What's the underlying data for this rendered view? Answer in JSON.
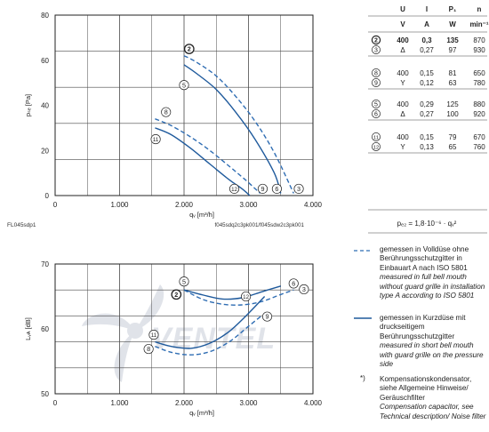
{
  "chart_data": [
    {
      "type": "line",
      "xlabel": "qᵥ [m³/h]",
      "ylabel": "pₛₑ [Pa]",
      "xlim": [
        0,
        4000
      ],
      "ylim": [
        0,
        80
      ],
      "x_ticks": [
        "0",
        "1.000",
        "2.000",
        "3.000",
        "4.000"
      ],
      "y_ticks": [
        "0",
        "20",
        "40",
        "60",
        "80"
      ],
      "grid": true,
      "footer_left": "FL045sdp1",
      "footer_right": "f045sdq2c3pk001/f045sdw2c3pk001",
      "series": [
        {
          "name": "2",
          "style": "dashed",
          "x": [
            2000,
            2200,
            2500,
            2800,
            3100,
            3400,
            3700
          ],
          "y": [
            62,
            59,
            53,
            44,
            33,
            19,
            1
          ]
        },
        {
          "name": "3",
          "style": "dashed",
          "x": [
            3700,
            3760
          ]
        },
        {
          "name": "5",
          "style": "solid",
          "x": [
            2000,
            2200,
            2500,
            2800,
            3100,
            3400,
            3500
          ],
          "y": [
            58,
            54,
            47,
            37,
            25,
            10,
            1
          ]
        },
        {
          "name": "6",
          "style": "solid",
          "x": [
            3500,
            3480
          ]
        },
        {
          "name": "8",
          "style": "dashed",
          "x": [
            1550,
            1800,
            2100,
            2400,
            2700,
            2950,
            3180
          ],
          "y": [
            34,
            31,
            26,
            20,
            13,
            7,
            1
          ]
        },
        {
          "name": "9",
          "style": "dashed",
          "x": [
            3180,
            3160
          ]
        },
        {
          "name": "11",
          "style": "solid",
          "x": [
            1550,
            1800,
            2100,
            2400,
            2700,
            2900,
            3020
          ],
          "y": [
            30,
            27,
            21,
            14,
            7,
            3,
            0
          ]
        },
        {
          "name": "12",
          "style": "solid",
          "x": [
            3020,
            3000
          ]
        }
      ],
      "curve_labels": [
        {
          "name": "2",
          "x": 2080,
          "y": 65,
          "bold": true
        },
        {
          "name": "5",
          "x": 2000,
          "y": 49
        },
        {
          "name": "8",
          "x": 1720,
          "y": 37
        },
        {
          "name": "11",
          "x": 1560,
          "y": 25
        },
        {
          "name": "12",
          "x": 2780,
          "y": 3
        },
        {
          "name": "9",
          "x": 3220,
          "y": 3
        },
        {
          "name": "6",
          "x": 3440,
          "y": 3
        },
        {
          "name": "3",
          "x": 3780,
          "y": 3
        }
      ]
    },
    {
      "type": "line",
      "xlabel": "qᵥ [m³/h]",
      "ylabel": "Lᵥᴀ [dB]",
      "xlim": [
        0,
        4000
      ],
      "ylim": [
        50,
        70
      ],
      "x_ticks": [
        "0",
        "1.000",
        "2.000",
        "3.000",
        "4.000"
      ],
      "y_ticks": [
        "50",
        "60",
        "70"
      ],
      "grid": true,
      "series": [
        {
          "name": "2",
          "style": "dashed",
          "x": [
            2000,
            2300,
            2600,
            2900,
            3200,
            3500,
            3700
          ],
          "y": [
            66,
            64.5,
            63.8,
            63.7,
            64.2,
            65.3,
            66
          ]
        },
        {
          "name": "5",
          "style": "solid",
          "x": [
            2000,
            2300,
            2600,
            2900,
            3200,
            3500
          ],
          "y": [
            66,
            65.2,
            64.6,
            64.8,
            65.7,
            66.6
          ]
        },
        {
          "name": "8",
          "style": "dashed",
          "x": [
            1550,
            1800,
            2100,
            2400,
            2700,
            3000,
            3200
          ],
          "y": [
            57.3,
            56.4,
            56.0,
            56.5,
            58.0,
            60.4,
            62
          ]
        },
        {
          "name": "11",
          "style": "solid",
          "x": [
            1550,
            1800,
            2100,
            2400,
            2700,
            3000,
            3250
          ],
          "y": [
            58,
            57.3,
            57.0,
            57.8,
            59.6,
            62.4,
            65
          ]
        }
      ],
      "curve_labels": [
        {
          "name": "5",
          "x": 2000,
          "y": 67.3
        },
        {
          "name": "2",
          "x": 1880,
          "y": 65.3,
          "bold": true
        },
        {
          "name": "12",
          "x": 2960,
          "y": 65.0
        },
        {
          "name": "6",
          "x": 3700,
          "y": 67.0
        },
        {
          "name": "3",
          "x": 3860,
          "y": 66.1
        },
        {
          "name": "9",
          "x": 3290,
          "y": 61.9
        },
        {
          "name": "11",
          "x": 1530,
          "y": 59.1
        },
        {
          "name": "8",
          "x": 1450,
          "y": 56.9
        }
      ]
    }
  ],
  "table": {
    "headers": [
      "U",
      "I",
      "P₁",
      "n"
    ],
    "units": [
      "V",
      "A",
      "W",
      "min⁻¹"
    ],
    "groups": [
      {
        "rows": [
          {
            "id": "2",
            "conn": "",
            "U": "400",
            "I": "0,3",
            "P": "135",
            "n": "870",
            "bold": true
          },
          {
            "id": "3",
            "conn": "Δ",
            "U": "",
            "I": "0,27",
            "P": "97",
            "n": "930",
            "bold": false
          }
        ]
      },
      {
        "rows": [
          {
            "id": "8",
            "conn": "",
            "U": "400",
            "I": "0,15",
            "P": "81",
            "n": "650",
            "bold": false
          },
          {
            "id": "9",
            "conn": "Y",
            "U": "",
            "I": "0,12",
            "P": "63",
            "n": "780",
            "bold": false
          }
        ]
      },
      {
        "rows": [
          {
            "id": "5",
            "conn": "",
            "U": "400",
            "I": "0,29",
            "P": "125",
            "n": "880",
            "bold": false
          },
          {
            "id": "6",
            "conn": "Δ",
            "U": "",
            "I": "0,27",
            "P": "100",
            "n": "920",
            "bold": false
          }
        ]
      },
      {
        "rows": [
          {
            "id": "11",
            "conn": "",
            "U": "400",
            "I": "0,15",
            "P": "79",
            "n": "670",
            "bold": false
          },
          {
            "id": "12",
            "conn": "Y",
            "U": "",
            "I": "0,13",
            "P": "65",
            "n": "760",
            "bold": false
          }
        ]
      }
    ],
    "formula": "pₑ₂ = 1,8·10⁻⁶ · qᵥ²"
  },
  "legend": {
    "dashed": {
      "de": "gemessen in Volldüse ohne Berührungsschutzgitter in Einbauart A nach ISO 5801",
      "en": "measured in full bell mouth without guard grille in installation type A according to ISO 5801"
    },
    "solid": {
      "de": "gemessen in Kurzdüse mit druckseitigem Berührungsschutzgitter",
      "en": "measured in short bell mouth with guard grille on the pressure side"
    },
    "note": {
      "marker": "*)",
      "de": "Kompensationskondensator, siehe Allgemeine Hinweise/ Geräuschfilter",
      "en": "Compensation capacitor, see Technical description/ Noise filter"
    }
  },
  "watermark": "VENTEL",
  "colors": {
    "solid_curve": "#1f5a9c",
    "dashed_curve": "#2f6db3",
    "grid": "#333333"
  }
}
